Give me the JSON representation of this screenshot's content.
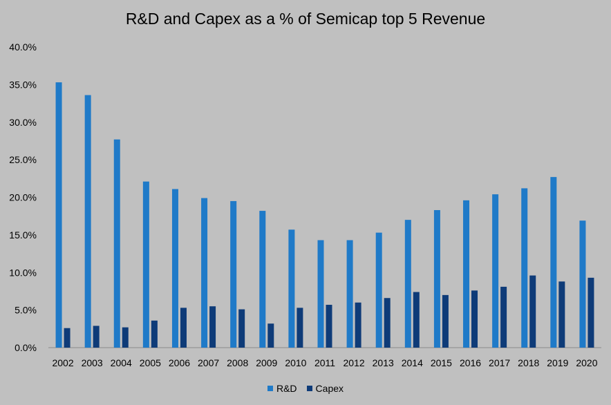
{
  "chart_data": {
    "type": "bar",
    "title": "R&D and Capex as a % of Semicap top 5 Revenue",
    "xlabel": "",
    "ylabel": "",
    "ylim": [
      0,
      40
    ],
    "yticks": [
      "0.0%",
      "5.0%",
      "10.0%",
      "15.0%",
      "20.0%",
      "25.0%",
      "30.0%",
      "35.0%",
      "40.0%"
    ],
    "categories": [
      "2002",
      "2003",
      "2004",
      "2005",
      "2006",
      "2007",
      "2008",
      "2009",
      "2010",
      "2011",
      "2012",
      "2013",
      "2014",
      "2015",
      "2016",
      "2017",
      "2018",
      "2019",
      "2020"
    ],
    "series": [
      {
        "name": "R&D",
        "color": "#1f7ac8",
        "values": [
          35.3,
          33.6,
          27.7,
          22.1,
          21.1,
          19.9,
          19.5,
          18.2,
          15.7,
          14.3,
          14.3,
          15.3,
          17.0,
          18.3,
          19.6,
          20.4,
          21.2,
          22.7,
          16.9
        ]
      },
      {
        "name": "Capex",
        "color": "#0e3b78",
        "values": [
          2.6,
          2.9,
          2.7,
          3.6,
          5.3,
          5.5,
          5.1,
          3.2,
          5.3,
          5.7,
          6.0,
          6.6,
          7.4,
          7.0,
          7.6,
          8.1,
          9.6,
          8.8,
          9.3
        ]
      }
    ],
    "grid": false,
    "legend_position": "bottom"
  }
}
